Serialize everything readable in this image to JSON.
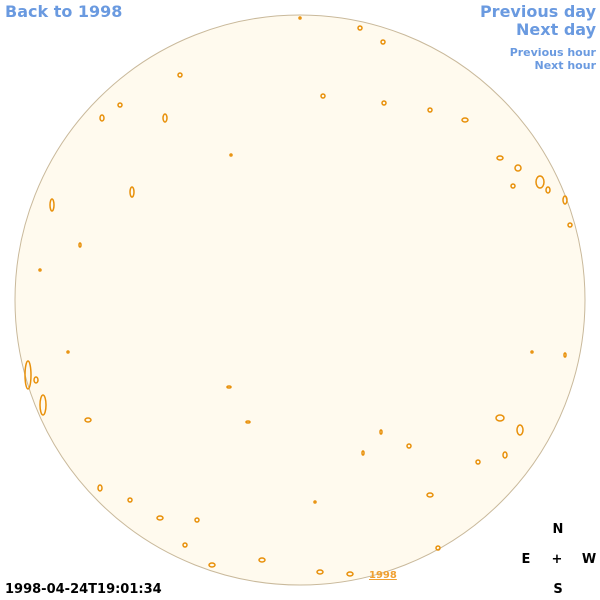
{
  "nav": {
    "back": "Back to 1998",
    "previous_day": "Previous day",
    "next_day": "Next day",
    "previous_hour": "Previous hour",
    "next_hour": "Next hour"
  },
  "disk_link": "1998",
  "timestamp": "1998-04-24T19:01:34",
  "compass": {
    "north": "N",
    "east": "E",
    "center": "+",
    "west": "W",
    "south": "S"
  }
}
